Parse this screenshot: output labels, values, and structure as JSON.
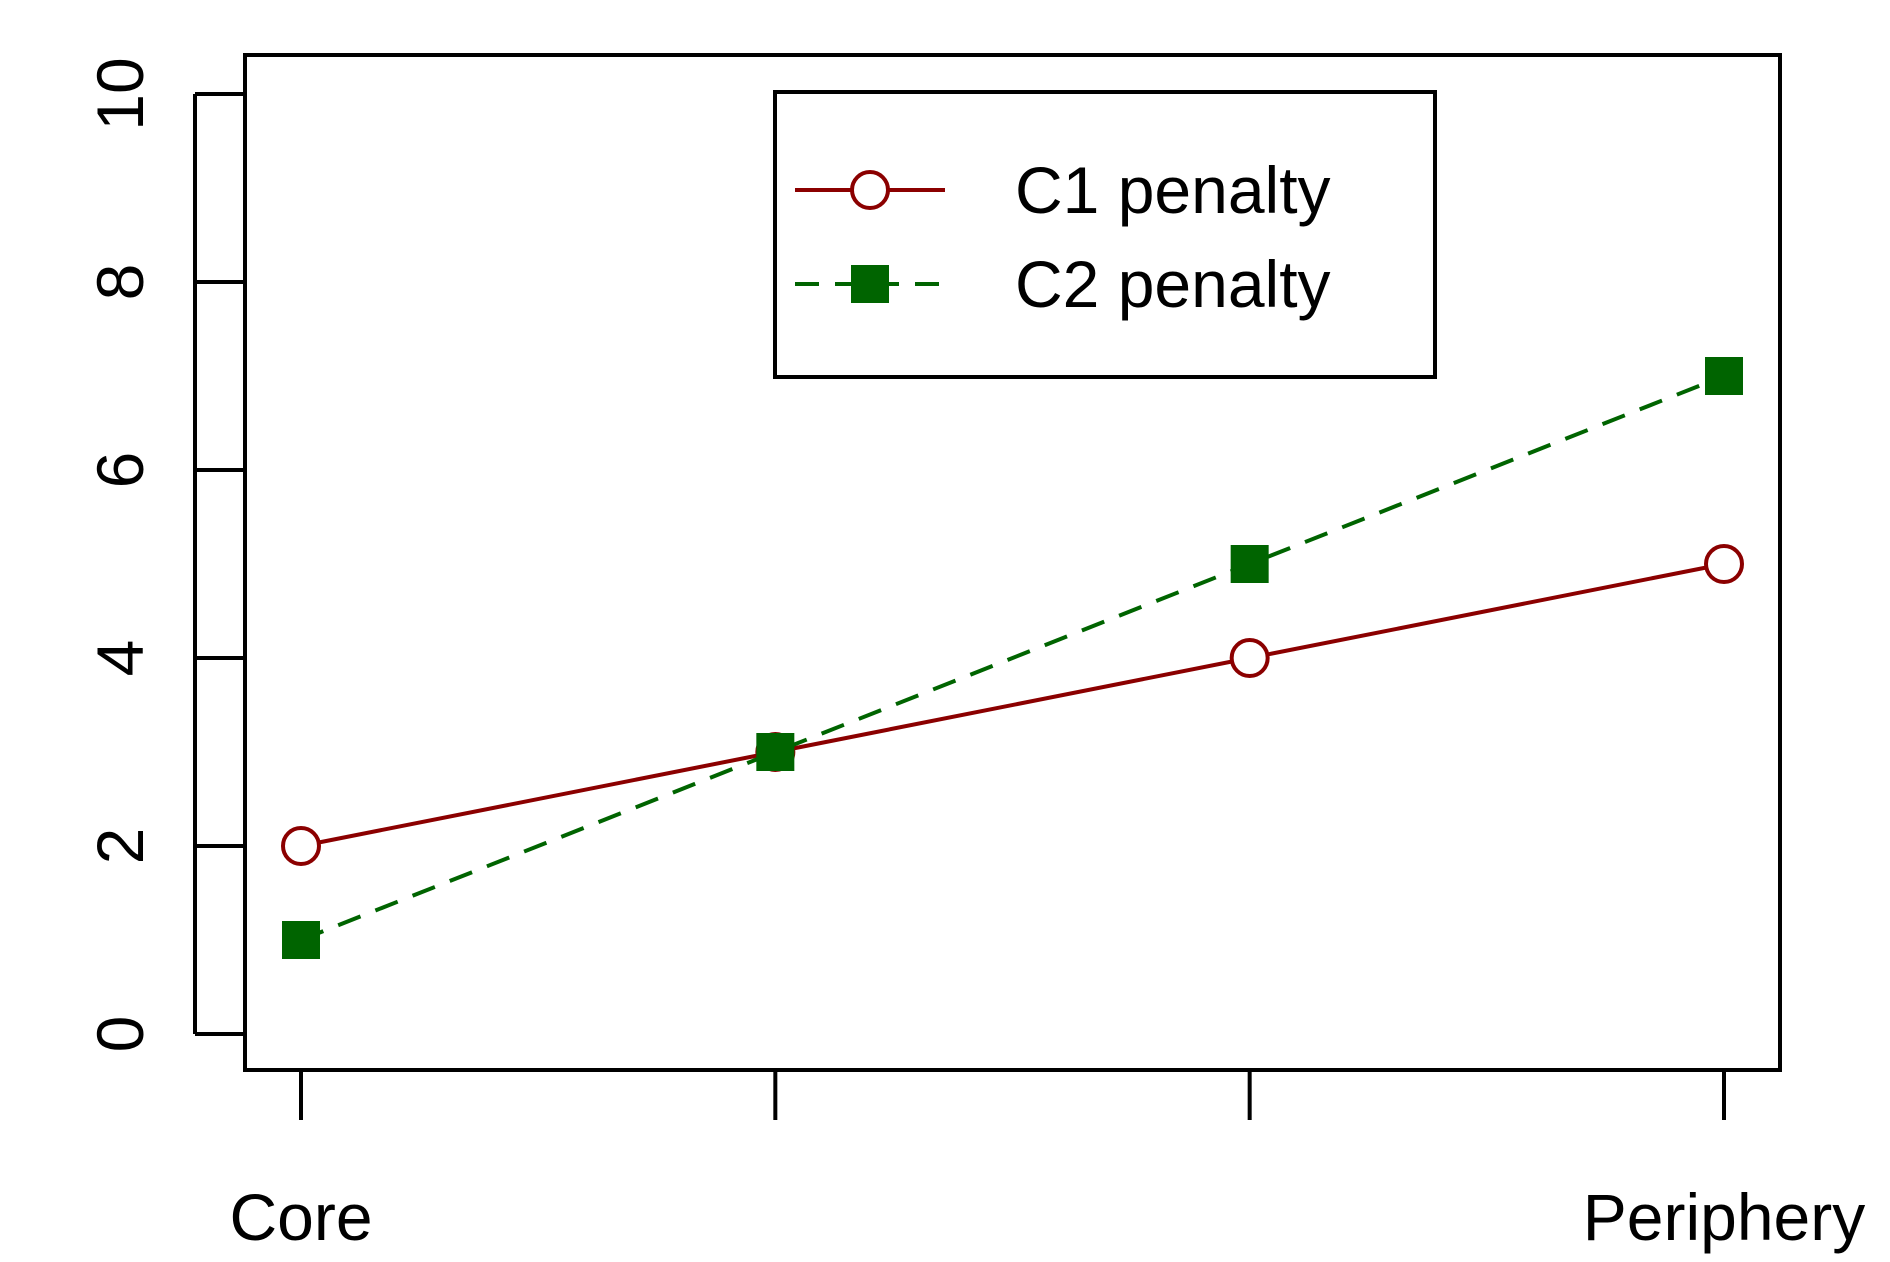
{
  "chart_data": {
    "type": "line",
    "title": "",
    "xlabel": "",
    "ylabel": "",
    "x": [
      1,
      2,
      3,
      4
    ],
    "x_tick_labels": [
      "Core",
      "",
      "",
      "Periphery"
    ],
    "ylim": [
      0,
      10
    ],
    "yticks": [
      "0",
      "2",
      "4",
      "6",
      "8",
      "10"
    ],
    "series": [
      {
        "name": "C1 penalty",
        "values": [
          2,
          3,
          4,
          5
        ],
        "color": "#8b0000",
        "line": "solid",
        "marker": "open-circle"
      },
      {
        "name": "C2 penalty",
        "values": [
          1,
          3,
          5,
          7
        ],
        "color": "#006400",
        "line": "dashed",
        "marker": "filled-square"
      }
    ],
    "legend_position": "top-center",
    "grid": false
  }
}
